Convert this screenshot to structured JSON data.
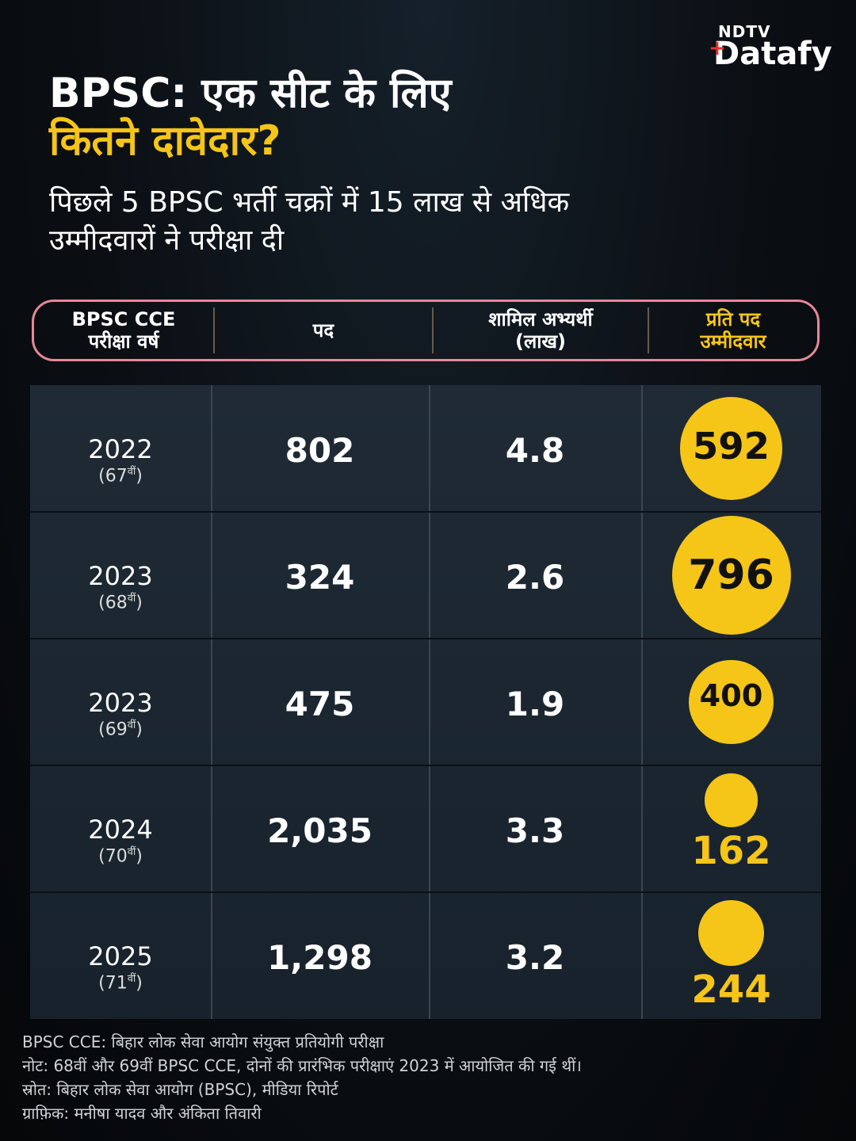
{
  "brand": {
    "top": "NDTV",
    "bottom": "Datafy"
  },
  "title_line1": "BPSC: एक सीट के लिए",
  "title_line2": "कितने दावेदार?",
  "subtitle_line1": "पिछले 5 BPSC भर्ती चक्रों में 15 लाख से अधिक",
  "subtitle_line2": "उम्मीदवारों ने परीक्षा दी",
  "colors": {
    "accent": "#f5c518",
    "header_border": "#e8869a",
    "background": "#0b0f14"
  },
  "columns": [
    {
      "line1": "BPSC CCE",
      "line2": "परीक्षा वर्ष"
    },
    {
      "line1": "पद",
      "line2": ""
    },
    {
      "line1": "शामिल अभ्यर्थी",
      "line2": "(लाख)"
    },
    {
      "line1": "प्रति पद",
      "line2": "उम्मीदवार"
    }
  ],
  "rows": [
    {
      "year": "2022",
      "edition_num": "(67",
      "edition_suffix": "वीं",
      "edition_close": ")",
      "posts": "802",
      "candidates": "4.8",
      "per_post": "592"
    },
    {
      "year": "2023",
      "edition_num": "(68",
      "edition_suffix": "वीं",
      "edition_close": ")",
      "posts": "324",
      "candidates": "2.6",
      "per_post": "796"
    },
    {
      "year": "2023",
      "edition_num": "(69",
      "edition_suffix": "वीं",
      "edition_close": ")",
      "posts": "475",
      "candidates": "1.9",
      "per_post": "400"
    },
    {
      "year": "2024",
      "edition_num": "(70",
      "edition_suffix": "वीं",
      "edition_close": ")",
      "posts": "2,035",
      "candidates": "3.3",
      "per_post": "162"
    },
    {
      "year": "2025",
      "edition_num": "(71",
      "edition_suffix": "वीं",
      "edition_close": ")",
      "posts": "1,298",
      "candidates": "3.2",
      "per_post": "244"
    }
  ],
  "chart_data": {
    "type": "table",
    "title": "BPSC: एक सीट के लिए कितने दावेदार?",
    "subtitle": "पिछले 5 BPSC भर्ती चक्रों में 15 लाख से अधिक उम्मीदवारों ने परीक्षा दी",
    "headers": [
      "BPSC CCE परीक्षा वर्ष",
      "पद",
      "शामिल अभ्यर्थी (लाख)",
      "प्रति पद उम्मीदवार"
    ],
    "categories": [
      "2022 (67वीं)",
      "2023 (68वीं)",
      "2023 (69वीं)",
      "2024 (70वीं)",
      "2025 (71वीं)"
    ],
    "series": [
      {
        "name": "पद",
        "values": [
          802,
          324,
          475,
          2035,
          1298
        ]
      },
      {
        "name": "शामिल अभ्यर्थी (लाख)",
        "values": [
          4.8,
          2.6,
          1.9,
          3.3,
          3.2
        ]
      },
      {
        "name": "प्रति पद उम्मीदवार",
        "values": [
          592,
          796,
          400,
          162,
          244
        ]
      }
    ]
  },
  "notes": [
    "BPSC CCE: बिहार लोक सेवा आयोग संयुक्त प्रतियोगी परीक्षा",
    "नोट: 68वीं और 69वीं BPSC CCE, दोनों की प्रारंभिक परीक्षाएं 2023 में आयोजित की गई थीं।",
    "स्रोत: बिहार लोक सेवा आयोग (BPSC), मीडिया रिपोर्ट",
    "ग्राफ़िक: मनीषा यादव और अंकिता तिवारी"
  ]
}
